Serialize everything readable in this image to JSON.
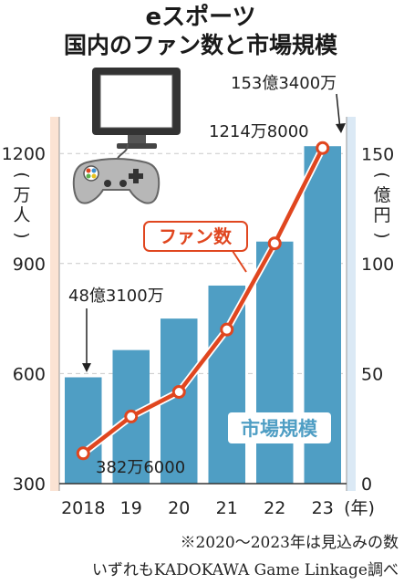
{
  "chart_data": {
    "type": "bar",
    "title": "eスポーツ",
    "subtitle": "国内のファン数と市場規模",
    "categories": [
      "2018",
      "19",
      "20",
      "21",
      "22",
      "23"
    ],
    "x_unit": "(年)",
    "series": [
      {
        "name": "市場規模",
        "type": "bar",
        "axis": "right",
        "values": [
          48.31,
          60.7,
          75.0,
          90.0,
          110.0,
          153.34
        ],
        "color": "#4f9ec4"
      },
      {
        "name": "ファン数",
        "type": "line",
        "axis": "left",
        "values": [
          382.6,
          483,
          550,
          720,
          955,
          1214.8
        ],
        "color": "#e0461f"
      }
    ],
    "y_left": {
      "label": "(万人)",
      "ticks": [
        "1200",
        "900",
        "600",
        "300"
      ],
      "tick_values": [
        1200,
        900,
        600,
        300
      ],
      "ylim": [
        300,
        1300
      ]
    },
    "y_right": {
      "label": "(億円)",
      "ticks": [
        "150",
        "100",
        "50",
        "0"
      ],
      "tick_values": [
        150,
        100,
        50,
        0
      ],
      "ylim": [
        0,
        166.7
      ]
    },
    "annotations": {
      "fan_start": "382万6000",
      "fan_end": "1214万8000",
      "market_start": "48億3100万",
      "market_end": "153億3400万"
    },
    "grid": "dashed-horizontal",
    "colors": {
      "bar": "#4f9ec4",
      "line": "#e0461f",
      "left_band": "#fbe3d3",
      "right_band": "#dbe9f5"
    }
  },
  "notes": {
    "forecast": "※2020～2023年は見込みの数",
    "source": "いずれもKADOKAWA Game Linkage調べ"
  },
  "icons": [
    "monitor-icon",
    "game-controller-icon"
  ]
}
